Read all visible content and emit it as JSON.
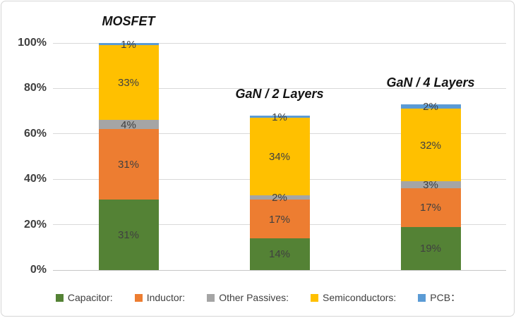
{
  "chart_data": {
    "type": "bar",
    "stacked": true,
    "title": "",
    "xlabel": "",
    "ylabel": "",
    "categories": [
      "MOSFET",
      "GaN / 2 Layers",
      "GaN / 4 Layers"
    ],
    "series": [
      {
        "name": "Capacitor:",
        "color": "#548235",
        "values": [
          31,
          14,
          19
        ]
      },
      {
        "name": "Inductor:",
        "color": "#ED7D31",
        "values": [
          31,
          17,
          17
        ]
      },
      {
        "name": "Other Passives:",
        "color": "#A5A5A5",
        "values": [
          4,
          2,
          3
        ]
      },
      {
        "name": "Semiconductors:",
        "color": "#FFC000",
        "values": [
          33,
          34,
          32
        ]
      },
      {
        "name": "PCB：",
        "color": "#5B9BD5",
        "values": [
          1,
          1,
          2
        ]
      }
    ],
    "totals": [
      100,
      68,
      73
    ],
    "y_ticks": [
      "0%",
      "20%",
      "40%",
      "60%",
      "80%",
      "100%"
    ],
    "ylim": [
      0,
      100
    ],
    "grid": true,
    "legend_position": "bottom",
    "data_label_suffix": "%",
    "colors": {
      "data_label": "#404040",
      "tick_label": "#3f3f3f",
      "gridline": "#d9d9d9",
      "frame_border": "#d6d6d6",
      "category_title": "#141414"
    }
  }
}
